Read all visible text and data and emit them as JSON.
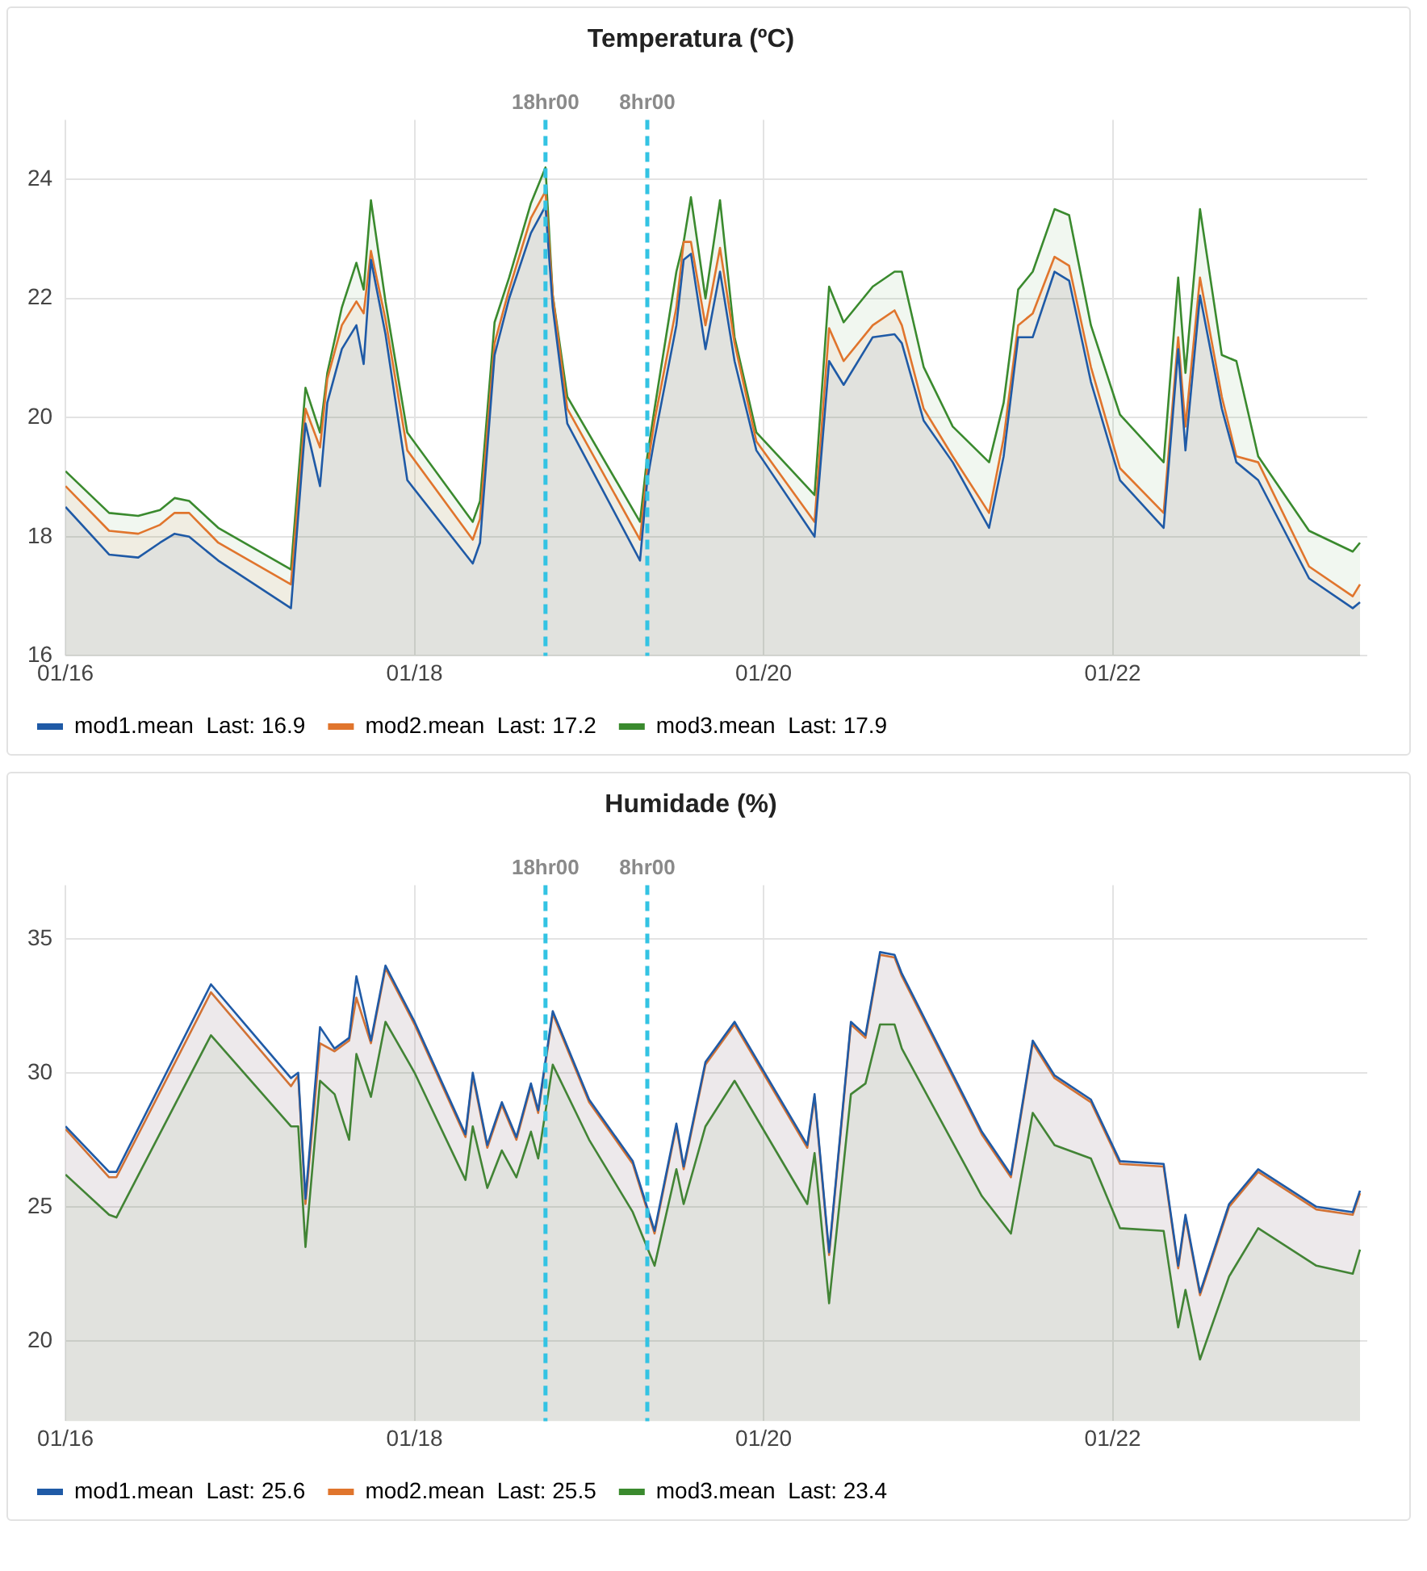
{
  "chart_data": [
    {
      "type": "area",
      "title": "Temperatura (ºC)",
      "legend": "bottom",
      "grid": true,
      "x": [
        "--01-16T00:00",
        "--01-16T06:00",
        "--01-16T10:00",
        "--01-16T13:00",
        "--01-16T15:00",
        "--01-16T17:00",
        "--01-16T21:00",
        "--01-17T07:00",
        "--01-17T09:00",
        "--01-17T11:00",
        "--01-17T12:00",
        "--01-17T14:00",
        "--01-17T16:00",
        "--01-17T17:00",
        "--01-17T18:00",
        "--01-17T20:00",
        "--01-17T23:00",
        "--01-18T08:00",
        "--01-18T09:00",
        "--01-18T11:00",
        "--01-18T13:00",
        "--01-18T16:00",
        "--01-18T18:00",
        "--01-18T19:00",
        "--01-18T21:00",
        "--01-19T07:00",
        "--01-19T08:00",
        "--01-19T09:00",
        "--01-19T12:00",
        "--01-19T13:00",
        "--01-19T14:00",
        "--01-19T16:00",
        "--01-19T18:00",
        "--01-19T20:00",
        "--01-19T23:00",
        "--01-20T07:00",
        "--01-20T09:00",
        "--01-20T11:00",
        "--01-20T15:00",
        "--01-20T18:00",
        "--01-20T19:00",
        "--01-20T22:00",
        "--01-21T02:00",
        "--01-21T07:00",
        "--01-21T09:00",
        "--01-21T11:00",
        "--01-21T13:00",
        "--01-21T16:00",
        "--01-21T18:00",
        "--01-21T21:00",
        "--01-22T01:00",
        "--01-22T07:00",
        "--01-22T09:00",
        "--01-22T10:00",
        "--01-22T12:00",
        "--01-22T15:00",
        "--01-22T17:00",
        "--01-22T20:00",
        "--01-23T03:00",
        "--01-23T09:00",
        "--01-23T10:00"
      ],
      "series": [
        {
          "name": "mod1.mean  Last: 16.9",
          "color": "#1f5aa6",
          "values": [
            18.5,
            17.7,
            17.65,
            17.9,
            18.05,
            18.0,
            17.6,
            16.8,
            19.9,
            18.85,
            20.25,
            21.15,
            21.55,
            20.9,
            22.65,
            21.4,
            18.95,
            17.55,
            17.9,
            21.05,
            22.0,
            23.1,
            23.55,
            21.85,
            19.9,
            17.6,
            18.95,
            19.65,
            21.55,
            22.65,
            22.75,
            21.15,
            22.45,
            20.95,
            19.45,
            18.0,
            20.95,
            20.55,
            21.35,
            21.4,
            21.25,
            19.95,
            19.25,
            18.15,
            19.35,
            21.35,
            21.35,
            22.45,
            22.3,
            20.6,
            18.95,
            18.15,
            21.15,
            19.45,
            22.05,
            20.15,
            19.25,
            18.95,
            17.3,
            16.8,
            16.9
          ]
        },
        {
          "name": "mod2.mean  Last: 17.2",
          "color": "#e0752d",
          "values": [
            18.85,
            18.1,
            18.05,
            18.2,
            18.4,
            18.4,
            17.9,
            17.2,
            20.15,
            19.5,
            20.65,
            21.55,
            21.95,
            21.75,
            22.8,
            21.65,
            19.45,
            17.95,
            18.3,
            21.25,
            22.15,
            23.35,
            23.8,
            22.05,
            20.15,
            17.95,
            19.15,
            19.95,
            21.85,
            22.95,
            22.95,
            21.55,
            22.85,
            21.25,
            19.6,
            18.25,
            21.5,
            20.95,
            21.55,
            21.8,
            21.55,
            20.15,
            19.35,
            18.4,
            19.65,
            21.55,
            21.75,
            22.7,
            22.55,
            20.85,
            19.15,
            18.4,
            21.35,
            19.85,
            22.35,
            20.35,
            19.35,
            19.25,
            17.5,
            17.0,
            17.2
          ]
        },
        {
          "name": "mod3.mean  Last: 17.9",
          "color": "#3a8a2e",
          "values": [
            19.1,
            18.4,
            18.35,
            18.45,
            18.65,
            18.6,
            18.15,
            17.45,
            20.5,
            19.75,
            20.75,
            21.85,
            22.6,
            22.15,
            23.65,
            21.95,
            19.75,
            18.25,
            18.6,
            21.6,
            22.35,
            23.6,
            24.2,
            22.05,
            20.35,
            18.25,
            19.35,
            20.15,
            22.45,
            22.95,
            23.7,
            22.0,
            23.65,
            21.35,
            19.75,
            18.7,
            22.2,
            21.6,
            22.2,
            22.45,
            22.45,
            20.85,
            19.85,
            19.25,
            20.25,
            22.15,
            22.45,
            23.5,
            23.4,
            21.55,
            20.05,
            19.25,
            22.35,
            20.75,
            23.5,
            21.05,
            20.95,
            19.35,
            18.1,
            17.75,
            17.9
          ]
        }
      ],
      "xlim": [
        "--01-16T00:00",
        "--01-23T11:00"
      ],
      "xticks": [
        {
          "value": "--01-16",
          "label": "01/16"
        },
        {
          "value": "--01-18",
          "label": "01/18"
        },
        {
          "value": "--01-20",
          "label": "01/20"
        },
        {
          "value": "--01-22",
          "label": "01/22"
        }
      ],
      "ylim": [
        16,
        25
      ],
      "yticks": [
        16,
        18,
        20,
        22,
        24
      ],
      "ref_lines": [
        {
          "axis": "x",
          "value": "--01-18T18:00",
          "label": "18hr00",
          "color": "#33c3e3",
          "line_style": "dashed"
        },
        {
          "axis": "x",
          "value": "--01-19T08:00",
          "label": "8hr00",
          "color": "#33c3e3",
          "line_style": "dashed"
        }
      ]
    },
    {
      "type": "area",
      "title": "Humidade (%)",
      "legend": "bottom",
      "grid": true,
      "x": [
        "--01-16T00:00",
        "--01-16T06:00",
        "--01-16T07:00",
        "--01-16T20:00",
        "--01-17T07:00",
        "--01-17T08:00",
        "--01-17T09:00",
        "--01-17T11:00",
        "--01-17T13:00",
        "--01-17T15:00",
        "--01-17T16:00",
        "--01-17T18:00",
        "--01-17T20:00",
        "--01-18T00:00",
        "--01-18T07:00",
        "--01-18T08:00",
        "--01-18T10:00",
        "--01-18T12:00",
        "--01-18T14:00",
        "--01-18T16:00",
        "--01-18T17:00",
        "--01-18T19:00",
        "--01-19T00:00",
        "--01-19T06:00",
        "--01-19T09:00",
        "--01-19T12:00",
        "--01-19T13:00",
        "--01-19T16:00",
        "--01-19T20:00",
        "--01-20T06:00",
        "--01-20T07:00",
        "--01-20T09:00",
        "--01-20T12:00",
        "--01-20T14:00",
        "--01-20T16:00",
        "--01-20T18:00",
        "--01-20T19:00",
        "--01-21T06:00",
        "--01-21T10:00",
        "--01-21T13:00",
        "--01-21T16:00",
        "--01-21T21:00",
        "--01-22T01:00",
        "--01-22T07:00",
        "--01-22T09:00",
        "--01-22T10:00",
        "--01-22T12:00",
        "--01-22T16:00",
        "--01-22T20:00",
        "--01-23T04:00",
        "--01-23T09:00",
        "--01-23T10:00"
      ],
      "series": [
        {
          "name": "mod1.mean  Last: 25.6",
          "color": "#1f5aa6",
          "values": [
            28.0,
            26.3,
            26.3,
            33.3,
            29.8,
            30.0,
            25.3,
            31.7,
            30.9,
            31.3,
            33.6,
            31.2,
            34.0,
            31.9,
            27.7,
            30.0,
            27.3,
            28.9,
            27.6,
            29.6,
            28.6,
            32.3,
            29.0,
            26.7,
            24.1,
            28.1,
            26.5,
            30.4,
            31.9,
            27.3,
            29.2,
            23.3,
            31.9,
            31.4,
            34.5,
            34.4,
            33.7,
            27.8,
            26.2,
            31.2,
            29.9,
            29.0,
            26.7,
            26.6,
            22.8,
            24.7,
            21.8,
            25.1,
            26.4,
            25.0,
            24.8,
            25.6
          ]
        },
        {
          "name": "mod2.mean  Last: 25.5",
          "color": "#e0752d",
          "values": [
            27.9,
            26.1,
            26.1,
            33.0,
            29.5,
            29.9,
            25.1,
            31.1,
            30.8,
            31.2,
            32.8,
            31.1,
            33.9,
            31.8,
            27.6,
            29.9,
            27.2,
            28.8,
            27.5,
            29.5,
            28.5,
            32.2,
            28.9,
            26.6,
            24.0,
            28.0,
            26.4,
            30.3,
            31.8,
            27.2,
            29.1,
            23.2,
            31.8,
            31.3,
            34.4,
            34.3,
            33.6,
            27.7,
            26.1,
            31.1,
            29.8,
            28.9,
            26.6,
            26.5,
            22.7,
            24.6,
            21.7,
            25.0,
            26.3,
            24.9,
            24.7,
            25.5
          ]
        },
        {
          "name": "mod3.mean  Last: 23.4",
          "color": "#3a8a2e",
          "values": [
            26.2,
            24.7,
            24.6,
            31.4,
            28.0,
            28.0,
            23.5,
            29.7,
            29.2,
            27.5,
            30.7,
            29.1,
            31.9,
            30.0,
            26.0,
            28.0,
            25.7,
            27.1,
            26.1,
            27.8,
            26.8,
            30.3,
            27.5,
            24.8,
            22.8,
            26.4,
            25.1,
            28.0,
            29.7,
            25.1,
            27.0,
            21.4,
            29.2,
            29.6,
            31.8,
            31.8,
            30.9,
            25.4,
            24.0,
            28.5,
            27.3,
            26.8,
            24.2,
            24.1,
            20.5,
            21.9,
            19.3,
            22.4,
            24.2,
            22.8,
            22.5,
            23.4
          ]
        }
      ],
      "xlim": [
        "--01-16T00:00",
        "--01-23T11:00"
      ],
      "xticks": [
        {
          "value": "--01-16",
          "label": "01/16"
        },
        {
          "value": "--01-18",
          "label": "01/18"
        },
        {
          "value": "--01-20",
          "label": "01/20"
        },
        {
          "value": "--01-22",
          "label": "01/22"
        }
      ],
      "ylim": [
        17,
        37
      ],
      "yticks": [
        20,
        25,
        30,
        35
      ],
      "ref_lines": [
        {
          "axis": "x",
          "value": "--01-18T18:00",
          "label": "18hr00",
          "color": "#33c3e3",
          "line_style": "dashed"
        },
        {
          "axis": "x",
          "value": "--01-19T08:00",
          "label": "8hr00",
          "color": "#33c3e3",
          "line_style": "dashed"
        }
      ]
    }
  ]
}
